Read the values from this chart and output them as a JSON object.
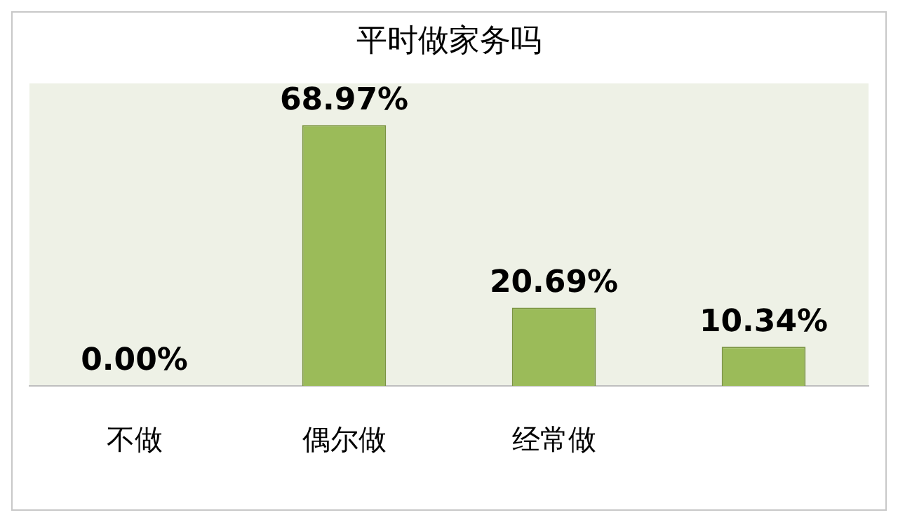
{
  "chart_data": {
    "type": "bar",
    "title": "平时做家务吗",
    "categories": [
      "不做",
      "偶尔做",
      "经常做",
      null
    ],
    "values": [
      0,
      68.97,
      20.69,
      10.34
    ],
    "value_labels": [
      "0.00%",
      "68.97%",
      "20.69%",
      "10.34%"
    ],
    "color": "#9bbb59",
    "grid": false,
    "legend": false,
    "tick_labels": "x"
  }
}
